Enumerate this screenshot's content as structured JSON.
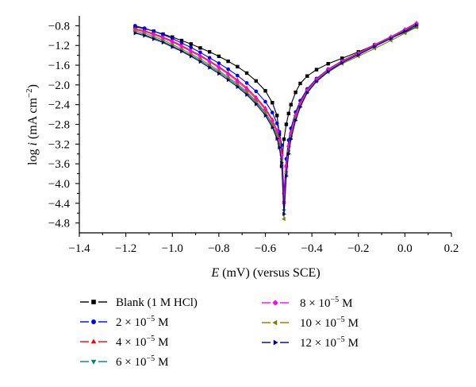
{
  "chart_data": {
    "type": "line",
    "xlabel": {
      "symbol": "E",
      "text": "(mV) (versus SCE)"
    },
    "ylabel": {
      "prefix": "log",
      "symbol": "i",
      "unit": "(mA cm",
      "exp": "−2",
      "close": ")"
    },
    "xlim": [
      -1.4,
      0.2
    ],
    "ylim": [
      -5.0,
      -0.6
    ],
    "xticks": [
      -1.4,
      -1.2,
      -1.0,
      -0.8,
      -0.6,
      -0.4,
      -0.2,
      0.0,
      0.2
    ],
    "xtick_labels": [
      "−1.4",
      "−1.2",
      "−1.0",
      "−0.8",
      "−0.6",
      "−0.4",
      "−0.2",
      "0.0",
      "0.2"
    ],
    "yticks": [
      -0.8,
      -1.2,
      -1.6,
      -2.0,
      -2.4,
      -2.8,
      -3.2,
      -3.6,
      -4.0,
      -4.4,
      -4.8
    ],
    "ytick_labels": [
      "−0.8",
      "−1.2",
      "−1.6",
      "−2.0",
      "−2.4",
      "−2.8",
      "−3.2",
      "−3.6",
      "−4.0",
      "−4.4",
      "−4.8"
    ],
    "grid": false,
    "legend_position": "bottom",
    "x": [
      -1.16,
      -1.12,
      -1.08,
      -1.04,
      -1.0,
      -0.96,
      -0.92,
      -0.88,
      -0.84,
      -0.8,
      -0.76,
      -0.72,
      -0.68,
      -0.64,
      -0.6,
      -0.57,
      -0.55,
      -0.54,
      -0.53,
      -0.52,
      -0.51,
      -0.5,
      -0.49,
      -0.47,
      -0.45,
      -0.42,
      -0.38,
      -0.33,
      -0.27,
      -0.2,
      -0.13,
      -0.06,
      0.0,
      0.05
    ],
    "series": [
      {
        "name": {
          "base": "Blank (1 M HCl)"
        },
        "color": "#000000",
        "marker": "square",
        "values": [
          -0.82,
          -0.86,
          -0.91,
          -0.97,
          -1.03,
          -1.1,
          -1.17,
          -1.25,
          -1.33,
          -1.42,
          -1.52,
          -1.63,
          -1.76,
          -1.92,
          -2.12,
          -2.36,
          -2.62,
          -3.0,
          -3.65,
          -3.1,
          -2.8,
          -2.58,
          -2.4,
          -2.15,
          -1.97,
          -1.82,
          -1.69,
          -1.57,
          -1.46,
          -1.33,
          -1.19,
          -1.05,
          -0.93,
          -0.82
        ]
      },
      {
        "name": {
          "base": "2 × 10",
          "exp": "−5",
          "unit": "M"
        },
        "color": "#0000ff",
        "marker": "circle",
        "values": [
          -0.8,
          -0.85,
          -0.91,
          -0.98,
          -1.06,
          -1.15,
          -1.24,
          -1.34,
          -1.45,
          -1.56,
          -1.68,
          -1.81,
          -1.96,
          -2.13,
          -2.34,
          -2.56,
          -2.78,
          -2.95,
          -3.22,
          -4.2,
          -3.5,
          -3.12,
          -2.88,
          -2.55,
          -2.32,
          -2.08,
          -1.87,
          -1.68,
          -1.52,
          -1.37,
          -1.21,
          -1.05,
          -0.9,
          -0.77
        ]
      },
      {
        "name": {
          "base": "4 × 10",
          "exp": "−5",
          "unit": "M"
        },
        "color": "#ff0000",
        "marker": "triangle-up",
        "values": [
          -0.86,
          -0.9,
          -0.96,
          -1.03,
          -1.11,
          -1.2,
          -1.3,
          -1.4,
          -1.51,
          -1.63,
          -1.76,
          -1.9,
          -2.06,
          -2.25,
          -2.47,
          -2.7,
          -2.92,
          -3.08,
          -3.36,
          -4.35,
          -3.62,
          -3.22,
          -2.96,
          -2.6,
          -2.36,
          -2.1,
          -1.88,
          -1.68,
          -1.51,
          -1.35,
          -1.18,
          -1.02,
          -0.87,
          -0.74
        ]
      },
      {
        "name": {
          "base": "6 × 10",
          "exp": "−5",
          "unit": "M"
        },
        "color": "#008080",
        "marker": "triangle-down",
        "values": [
          -0.93,
          -0.98,
          -1.05,
          -1.12,
          -1.21,
          -1.3,
          -1.4,
          -1.5,
          -1.62,
          -1.74,
          -1.87,
          -2.01,
          -2.17,
          -2.36,
          -2.58,
          -2.82,
          -3.04,
          -3.22,
          -3.52,
          -4.55,
          -3.78,
          -3.35,
          -3.06,
          -2.68,
          -2.42,
          -2.14,
          -1.91,
          -1.71,
          -1.54,
          -1.38,
          -1.21,
          -1.05,
          -0.9,
          -0.78
        ]
      },
      {
        "name": {
          "base": "8 × 10",
          "exp": "−5",
          "unit": "M"
        },
        "color": "#ff00ff",
        "marker": "diamond",
        "values": [
          -0.88,
          -0.92,
          -0.98,
          -1.05,
          -1.13,
          -1.22,
          -1.32,
          -1.42,
          -1.53,
          -1.65,
          -1.78,
          -1.93,
          -2.09,
          -2.28,
          -2.5,
          -2.73,
          -2.95,
          -3.12,
          -3.42,
          -4.4,
          -3.66,
          -3.25,
          -2.98,
          -2.62,
          -2.38,
          -2.11,
          -1.89,
          -1.69,
          -1.52,
          -1.36,
          -1.19,
          -1.03,
          -0.88,
          -0.75
        ]
      },
      {
        "name": {
          "base": "10 × 10",
          "exp": "−5",
          "unit": "M"
        },
        "color": "#808000",
        "marker": "triangle-left",
        "values": [
          -0.9,
          -0.95,
          -1.02,
          -1.09,
          -1.18,
          -1.27,
          -1.37,
          -1.47,
          -1.59,
          -1.71,
          -1.84,
          -1.98,
          -2.14,
          -2.33,
          -2.55,
          -2.79,
          -3.01,
          -3.19,
          -3.55,
          -4.72,
          -3.8,
          -3.36,
          -3.06,
          -2.68,
          -2.42,
          -2.15,
          -1.93,
          -1.74,
          -1.57,
          -1.42,
          -1.26,
          -1.1,
          -0.95,
          -0.83
        ]
      },
      {
        "name": {
          "base": "12 × 10",
          "exp": "−5",
          "unit": "M"
        },
        "color": "#000080",
        "marker": "triangle-right",
        "values": [
          -0.95,
          -1.0,
          -1.07,
          -1.14,
          -1.23,
          -1.32,
          -1.42,
          -1.53,
          -1.65,
          -1.77,
          -1.9,
          -2.04,
          -2.2,
          -2.39,
          -2.62,
          -2.86,
          -3.09,
          -3.27,
          -3.58,
          -4.62,
          -3.85,
          -3.4,
          -3.1,
          -2.72,
          -2.45,
          -2.16,
          -1.93,
          -1.73,
          -1.55,
          -1.39,
          -1.22,
          -1.06,
          -0.91,
          -0.79
        ]
      }
    ]
  }
}
